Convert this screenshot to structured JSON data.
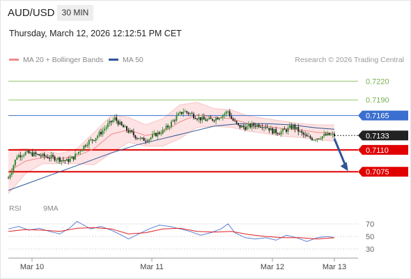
{
  "header": {
    "pair": "AUD/USD",
    "timeframe": "30 MIN",
    "datetime": "Thursday, March 12, 2026 12:12:51 PM CET"
  },
  "legend": {
    "ma20": "MA 20 + Bollinger Bands",
    "ma50": "MA 50",
    "ma20_color": "#f08a8a",
    "ma50_color": "#2e5597",
    "copyright": "Research © 2026 Trading Central"
  },
  "rsi_legend": {
    "rsi": "RSI",
    "ma9": "9MA",
    "rsi_color": "#5b7fd6",
    "ma9_color": "#e02020"
  },
  "chart_data": {
    "type": "candlestick",
    "price_range": [
      0.7035,
      0.7245
    ],
    "current_price": "0.7133",
    "x_ticks": [
      "Mar 10",
      "Mar 11",
      "Mar 12",
      "Mar 13"
    ],
    "levels": [
      {
        "label": "0.7220",
        "value": 0.722,
        "kind": "resistance"
      },
      {
        "label": "0.7190",
        "value": 0.719,
        "kind": "resistance"
      },
      {
        "label": "0.7165",
        "value": 0.7165,
        "kind": "pivot"
      },
      {
        "label": "0.7110",
        "value": 0.711,
        "kind": "support"
      },
      {
        "label": "0.7075",
        "value": 0.7075,
        "kind": "support"
      }
    ],
    "level_colors": {
      "resistance": "#8fc86a",
      "pivot": "#3a6fd0",
      "support": "#e00000",
      "current": "#222222"
    },
    "price_path": [
      [
        0,
        0.7065
      ],
      [
        5,
        0.71
      ],
      [
        10,
        0.7105
      ],
      [
        15,
        0.7103
      ],
      [
        20,
        0.71
      ],
      [
        25,
        0.7098
      ],
      [
        30,
        0.7095
      ],
      [
        34,
        0.7092
      ],
      [
        38,
        0.7098
      ],
      [
        42,
        0.711
      ],
      [
        46,
        0.7122
      ],
      [
        50,
        0.7128
      ],
      [
        54,
        0.7138
      ],
      [
        58,
        0.715
      ],
      [
        62,
        0.716
      ],
      [
        66,
        0.7148
      ],
      [
        70,
        0.714
      ],
      [
        74,
        0.7132
      ],
      [
        78,
        0.7126
      ],
      [
        82,
        0.7128
      ],
      [
        86,
        0.7135
      ],
      [
        90,
        0.714
      ],
      [
        94,
        0.715
      ],
      [
        98,
        0.7163
      ],
      [
        102,
        0.7172
      ],
      [
        106,
        0.7168
      ],
      [
        110,
        0.7162
      ],
      [
        114,
        0.7158
      ],
      [
        118,
        0.7158
      ],
      [
        122,
        0.7162
      ],
      [
        126,
        0.7168
      ],
      [
        128,
        0.7172
      ],
      [
        130,
        0.716
      ],
      [
        134,
        0.7148
      ],
      [
        138,
        0.7146
      ],
      [
        142,
        0.7149
      ],
      [
        146,
        0.715
      ],
      [
        150,
        0.7148
      ],
      [
        154,
        0.714
      ],
      [
        158,
        0.7138
      ],
      [
        162,
        0.7142
      ],
      [
        166,
        0.7148
      ],
      [
        170,
        0.7138
      ],
      [
        174,
        0.713
      ],
      [
        178,
        0.7128
      ],
      [
        182,
        0.7131
      ],
      [
        186,
        0.7134
      ],
      [
        190,
        0.7133
      ]
    ],
    "ma20": [
      [
        0,
        0.7075
      ],
      [
        10,
        0.7092
      ],
      [
        20,
        0.7098
      ],
      [
        30,
        0.7096
      ],
      [
        40,
        0.71
      ],
      [
        50,
        0.7112
      ],
      [
        60,
        0.7135
      ],
      [
        70,
        0.7142
      ],
      [
        80,
        0.7133
      ],
      [
        90,
        0.7138
      ],
      [
        100,
        0.7155
      ],
      [
        110,
        0.7166
      ],
      [
        120,
        0.7162
      ],
      [
        130,
        0.716
      ],
      [
        140,
        0.7152
      ],
      [
        150,
        0.7148
      ],
      [
        160,
        0.7144
      ],
      [
        170,
        0.7142
      ],
      [
        180,
        0.7138
      ],
      [
        190,
        0.7136
      ]
    ],
    "bb_upper": [
      [
        0,
        0.711
      ],
      [
        10,
        0.7112
      ],
      [
        20,
        0.7108
      ],
      [
        30,
        0.7104
      ],
      [
        40,
        0.7112
      ],
      [
        50,
        0.7138
      ],
      [
        60,
        0.7165
      ],
      [
        70,
        0.7162
      ],
      [
        80,
        0.715
      ],
      [
        90,
        0.716
      ],
      [
        100,
        0.7182
      ],
      [
        110,
        0.7186
      ],
      [
        120,
        0.7176
      ],
      [
        130,
        0.7174
      ],
      [
        140,
        0.7164
      ],
      [
        150,
        0.716
      ],
      [
        160,
        0.7156
      ],
      [
        170,
        0.7152
      ],
      [
        180,
        0.715
      ],
      [
        190,
        0.715
      ]
    ],
    "bb_lower": [
      [
        0,
        0.704
      ],
      [
        10,
        0.7072
      ],
      [
        20,
        0.7088
      ],
      [
        30,
        0.7088
      ],
      [
        40,
        0.7088
      ],
      [
        50,
        0.7086
      ],
      [
        60,
        0.7105
      ],
      [
        70,
        0.7122
      ],
      [
        80,
        0.7116
      ],
      [
        90,
        0.7116
      ],
      [
        100,
        0.7128
      ],
      [
        110,
        0.7146
      ],
      [
        120,
        0.7148
      ],
      [
        130,
        0.7146
      ],
      [
        140,
        0.714
      ],
      [
        150,
        0.7136
      ],
      [
        160,
        0.7132
      ],
      [
        170,
        0.713
      ],
      [
        180,
        0.7126
      ],
      [
        190,
        0.7124
      ]
    ],
    "ma50": [
      [
        0,
        0.7045
      ],
      [
        15,
        0.706
      ],
      [
        30,
        0.7075
      ],
      [
        45,
        0.709
      ],
      [
        60,
        0.7105
      ],
      [
        75,
        0.7118
      ],
      [
        90,
        0.7128
      ],
      [
        105,
        0.7138
      ],
      [
        120,
        0.7148
      ],
      [
        135,
        0.7152
      ],
      [
        150,
        0.7152
      ],
      [
        165,
        0.715
      ],
      [
        180,
        0.7145
      ],
      [
        190,
        0.7143
      ]
    ],
    "rsi": {
      "ticks": [
        "70",
        "50",
        "30"
      ],
      "tick_values": [
        70,
        50,
        30
      ],
      "range": [
        20,
        80
      ],
      "rsi_values": [
        [
          0,
          62
        ],
        [
          6,
          66
        ],
        [
          12,
          60
        ],
        [
          18,
          63
        ],
        [
          24,
          58
        ],
        [
          30,
          54
        ],
        [
          36,
          64
        ],
        [
          40,
          74
        ],
        [
          44,
          68
        ],
        [
          48,
          62
        ],
        [
          54,
          66
        ],
        [
          60,
          60
        ],
        [
          66,
          52
        ],
        [
          70,
          46
        ],
        [
          76,
          54
        ],
        [
          82,
          62
        ],
        [
          88,
          68
        ],
        [
          94,
          66
        ],
        [
          100,
          62
        ],
        [
          106,
          58
        ],
        [
          112,
          52
        ],
        [
          118,
          56
        ],
        [
          124,
          62
        ],
        [
          128,
          70
        ],
        [
          132,
          56
        ],
        [
          138,
          48
        ],
        [
          144,
          46
        ],
        [
          150,
          48
        ],
        [
          156,
          44
        ],
        [
          162,
          52
        ],
        [
          168,
          48
        ],
        [
          174,
          42
        ],
        [
          180,
          48
        ],
        [
          186,
          50
        ],
        [
          190,
          48
        ]
      ],
      "ma9_values": [
        [
          0,
          58
        ],
        [
          10,
          61
        ],
        [
          20,
          60
        ],
        [
          30,
          58
        ],
        [
          40,
          63
        ],
        [
          50,
          64
        ],
        [
          60,
          62
        ],
        [
          70,
          54
        ],
        [
          80,
          56
        ],
        [
          90,
          62
        ],
        [
          100,
          63
        ],
        [
          110,
          58
        ],
        [
          120,
          57
        ],
        [
          130,
          58
        ],
        [
          140,
          53
        ],
        [
          150,
          50
        ],
        [
          160,
          48
        ],
        [
          170,
          48
        ],
        [
          180,
          46
        ],
        [
          190,
          48
        ]
      ]
    },
    "forecast_arrow": {
      "from": [
        190,
        0.7128
      ],
      "to": [
        198,
        0.7076
      ],
      "color": "#2e5597"
    }
  }
}
